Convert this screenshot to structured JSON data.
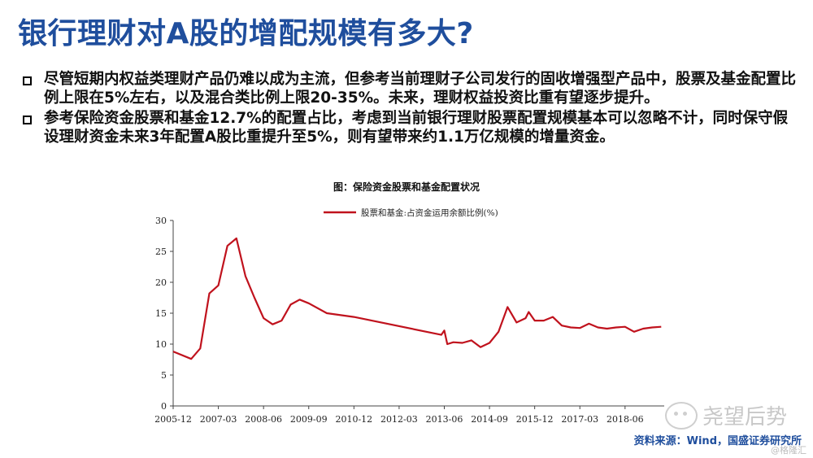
{
  "slide": {
    "title": "银行理财对A股的增配规模有多大?",
    "bullets": [
      "尽管短期内权益类理财产品仍难以成为主流，但参考当前理财子公司发行的固收增强型产品中，股票及基金配置比例上限在5%左右，以及混合类比例上限20-35%。未来，理财权益投资比重有望逐步提升。",
      "参考保险资金股票和基金12.7%的配置占比，考虑到当前银行理财股票配置规模基本可以忽略不计，同时保守假设理财资金未来3年配置A股比重提升至5%，则有望带来约1.1万亿规模的增量资金。"
    ],
    "source": "资料来源：Wind，国盛证券研究所",
    "watermark": "尧望后势",
    "watermark2": "@格隆汇"
  },
  "colors": {
    "title": "#1f4e9d",
    "line": "#c0121d",
    "source": "#1f4e9d"
  },
  "chart_data": {
    "type": "line",
    "title": "图：保险资金股票和基金配置状况",
    "legend_position": "top-center",
    "ylim": [
      0,
      30
    ],
    "yticks": [
      "0",
      "5",
      "10",
      "15",
      "20",
      "25",
      "30"
    ],
    "xtick_labels": [
      "2005-12",
      "2007-03",
      "2008-06",
      "2009-09",
      "2010-12",
      "2012-03",
      "2013-06",
      "2014-09",
      "2015-12",
      "2017-03",
      "2018-06"
    ],
    "series": [
      {
        "name": "股票和基金:占资金运用余额比例(%)",
        "color": "#c0121d",
        "x": [
          "2005-12",
          "2006-06",
          "2006-09",
          "2006-12",
          "2007-03",
          "2007-06",
          "2007-09",
          "2007-12",
          "2008-03",
          "2008-06",
          "2008-09",
          "2008-12",
          "2009-03",
          "2009-06",
          "2009-09",
          "2010-03",
          "2010-12",
          "2013-05",
          "2013-06",
          "2013-07",
          "2013-09",
          "2013-12",
          "2014-03",
          "2014-06",
          "2014-09",
          "2014-12",
          "2015-03",
          "2015-06",
          "2015-09",
          "2015-10",
          "2015-12",
          "2016-03",
          "2016-06",
          "2016-09",
          "2016-12",
          "2017-03",
          "2017-06",
          "2017-09",
          "2017-12",
          "2018-03",
          "2018-06",
          "2018-09",
          "2018-12",
          "2019-03",
          "2019-06"
        ],
        "values": [
          8.8,
          7.6,
          9.3,
          18.2,
          19.5,
          25.9,
          27.1,
          21.0,
          17.5,
          14.2,
          13.2,
          13.8,
          16.4,
          17.2,
          16.6,
          15.0,
          14.4,
          11.5,
          12.2,
          10.0,
          10.3,
          10.2,
          10.6,
          9.5,
          10.2,
          12.0,
          16.0,
          13.5,
          14.2,
          15.2,
          13.8,
          13.8,
          14.4,
          13.0,
          12.7,
          12.6,
          13.3,
          12.7,
          12.5,
          12.7,
          12.8,
          12.0,
          12.5,
          12.7,
          12.8
        ]
      }
    ]
  }
}
